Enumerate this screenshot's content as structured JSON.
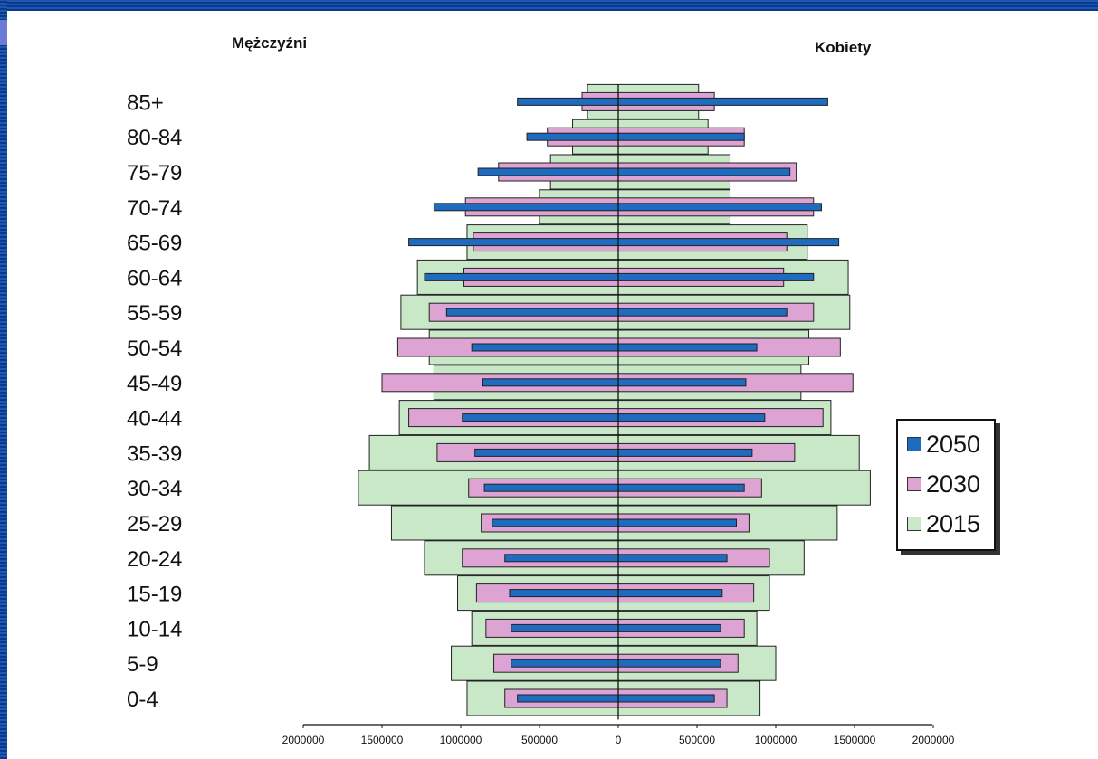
{
  "header": {
    "left_label": "Mężczyźni",
    "right_label": "Kobiety"
  },
  "colors": {
    "s2015": "#c8e8c8",
    "s2030": "#dca3d3",
    "s2050": "#1f6bbf",
    "stroke": "#222222"
  },
  "legend": [
    {
      "name": "2050",
      "color": "#1f6bbf"
    },
    {
      "name": "2030",
      "color": "#dca3d3"
    },
    {
      "name": "2015",
      "color": "#c8e8c8"
    }
  ],
  "chart_data": {
    "type": "bar",
    "orientation": "horizontal",
    "subtype": "population-pyramid",
    "categories": [
      "85+",
      "80-84",
      "75-79",
      "70-74",
      "65-69",
      "60-64",
      "55-59",
      "50-54",
      "45-49",
      "40-44",
      "35-39",
      "30-34",
      "25-29",
      "20-24",
      "15-19",
      "10-14",
      "5-9",
      "0-4"
    ],
    "xlim": [
      -2000000,
      2000000
    ],
    "x_ticks": [
      "2000000",
      "1500000",
      "1000000",
      "500000",
      "0",
      "500000",
      "1000000",
      "1500000",
      "2000000"
    ],
    "x_tick_values": [
      -2000000,
      -1500000,
      -1000000,
      -500000,
      0,
      500000,
      1000000,
      1500000,
      2000000
    ],
    "legend_position": "right",
    "series": [
      {
        "name": "2015",
        "male": [
          -195000,
          -290000,
          -430000,
          -500000,
          -960000,
          -1275000,
          -1380000,
          -1200000,
          -1170000,
          -1390000,
          -1580000,
          -1650000,
          -1440000,
          -1230000,
          -1020000,
          -930000,
          -1060000,
          -960000
        ],
        "female": [
          510000,
          570000,
          710000,
          710000,
          1200000,
          1460000,
          1470000,
          1210000,
          1160000,
          1350000,
          1530000,
          1600000,
          1390000,
          1180000,
          960000,
          880000,
          1000000,
          900000
        ]
      },
      {
        "name": "2030",
        "male": [
          -230000,
          -450000,
          -760000,
          -970000,
          -920000,
          -980000,
          -1200000,
          -1400000,
          -1500000,
          -1330000,
          -1150000,
          -950000,
          -870000,
          -990000,
          -900000,
          -840000,
          -790000,
          -720000
        ],
        "female": [
          610000,
          800000,
          1130000,
          1240000,
          1070000,
          1050000,
          1240000,
          1410000,
          1490000,
          1300000,
          1120000,
          910000,
          830000,
          960000,
          860000,
          800000,
          760000,
          690000
        ]
      },
      {
        "name": "2050",
        "male": [
          -640000,
          -580000,
          -890000,
          -1170000,
          -1330000,
          -1230000,
          -1090000,
          -930000,
          -860000,
          -990000,
          -910000,
          -850000,
          -800000,
          -720000,
          -690000,
          -680000,
          -680000,
          -640000
        ],
        "female": [
          1330000,
          800000,
          1090000,
          1290000,
          1400000,
          1240000,
          1070000,
          880000,
          810000,
          930000,
          850000,
          800000,
          750000,
          690000,
          660000,
          650000,
          650000,
          610000
        ]
      }
    ]
  }
}
